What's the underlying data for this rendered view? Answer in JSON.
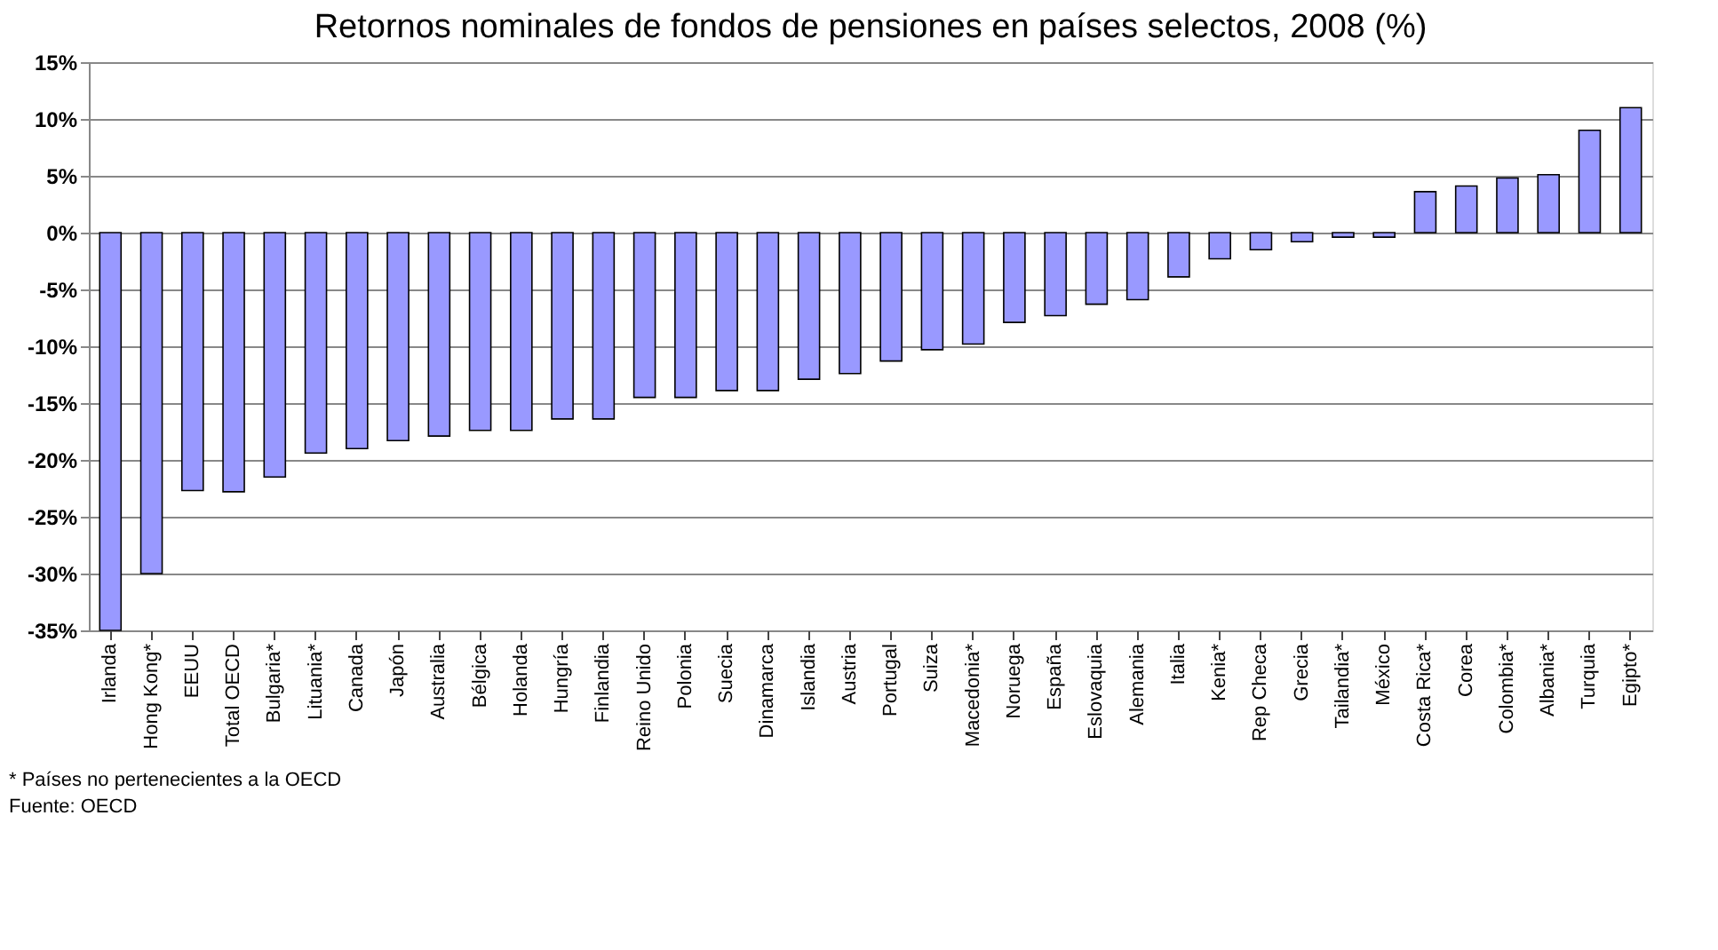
{
  "chart_data": {
    "type": "bar",
    "title": "Retornos nominales de fondos de pensiones en países selectos, 2008 (%)",
    "categories": [
      "Irlanda",
      "Hong Kong*",
      "EEUU",
      "Total OECD",
      "Bulgaria*",
      "Lituania*",
      "Canada",
      "Japón",
      "Australia",
      "Bélgica",
      "Holanda",
      "Hungría",
      "Finlandia",
      "Reino Unido",
      "Polonia",
      "Suecia",
      "Dinamarca",
      "Islandia",
      "Austria",
      "Portugal",
      "Suiza",
      "Macedonia*",
      "Noruega",
      "España",
      "Eslovaquia",
      "Alemania",
      "Italia",
      "Kenia*",
      "Rep Checa",
      "Grecia",
      "Tailandia*",
      "México",
      "Costa Rica*",
      "Corea",
      "Colombia*",
      "Albania*",
      "Turquia",
      "Egipto*"
    ],
    "values": [
      -35,
      -30,
      -22.7,
      -22.8,
      -21.5,
      -19.4,
      -19.0,
      -18.3,
      -17.9,
      -17.4,
      -17.4,
      -16.4,
      -16.4,
      -14.5,
      -14.5,
      -13.9,
      -13.9,
      -12.9,
      -12.4,
      -11.3,
      -10.3,
      -9.8,
      -7.9,
      -7.3,
      -6.3,
      -5.9,
      -3.9,
      -2.3,
      -1.5,
      -0.8,
      -0.4,
      -0.4,
      3.6,
      4.1,
      4.8,
      5.1,
      9.0,
      11.0
    ],
    "color": "#9999ff",
    "ylim": [
      -35,
      15
    ],
    "yticks": [
      {
        "value": -35,
        "label": "-35%"
      },
      {
        "value": -30,
        "label": "-30%"
      },
      {
        "value": -25,
        "label": "-25%"
      },
      {
        "value": -20,
        "label": "-20%"
      },
      {
        "value": -15,
        "label": "-15%"
      },
      {
        "value": -10,
        "label": "-10%"
      },
      {
        "value": -5,
        "label": "-5%"
      },
      {
        "value": 0,
        "label": "0%"
      },
      {
        "value": 5,
        "label": "5%"
      },
      {
        "value": 10,
        "label": "10%"
      },
      {
        "value": 15,
        "label": "15%"
      }
    ],
    "grid": "y",
    "annotations": [
      "* Países no pertenecientes a la OECD",
      "Fuente: OECD"
    ]
  }
}
